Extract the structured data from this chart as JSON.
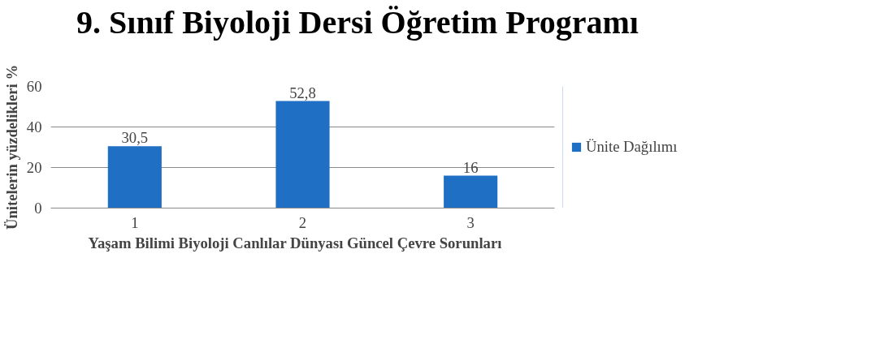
{
  "chart_data": {
    "type": "bar",
    "title": "9. Sınıf Biyoloji Dersi Öğretim Programı",
    "xlabel": "Yaşam Bilimi Biyoloji   Canlılar Dünyası   Güncel Çevre Sorunları",
    "ylabel": "Ünitelerin yüzdelikleri %",
    "categories": [
      "1",
      "2",
      "3"
    ],
    "series": [
      {
        "name": "Ünite Dağılımı",
        "color": "#1f6fc5",
        "values": [
          30.5,
          52.8,
          16
        ],
        "value_labels": [
          "30,5",
          "52,8",
          "16"
        ]
      }
    ],
    "ylim": [
      0,
      60
    ],
    "yticks": [
      0,
      20,
      40,
      60
    ],
    "grid": "y",
    "legend": "right"
  }
}
